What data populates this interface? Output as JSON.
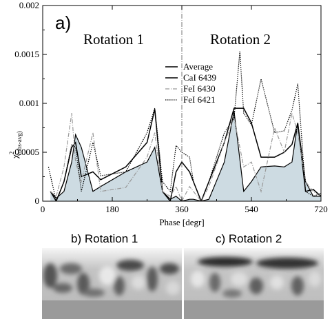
{
  "chart_data": [
    {
      "type": "area",
      "panel_label": "a)",
      "xlabel": "Phase [degr]",
      "ylabel_main": "χ",
      "ylabel_sup": "2",
      "ylabel_sub": "(obs-avg)",
      "xlim": [
        0,
        720
      ],
      "ylim": [
        0,
        0.002
      ],
      "xticks": [
        0,
        180,
        360,
        540,
        720
      ],
      "yticks": [
        0,
        0.0005,
        0.001,
        0.0015,
        0.002
      ],
      "ytick_labels": [
        "0",
        "0.0005",
        "0.001",
        "0.0015",
        "0.002"
      ],
      "divider_x": 360,
      "annotations": [
        "Rotation 1",
        "Rotation 2"
      ],
      "legend_position": "center",
      "series": [
        {
          "name": "Average",
          "style": "filled-area",
          "color": "#000000",
          "fill": "#cddbe2",
          "x": [
            20,
            35,
            55,
            75,
            85,
            100,
            130,
            150,
            215,
            270,
            290,
            310,
            330,
            345,
            360,
            380,
            390,
            410,
            430,
            470,
            495,
            520,
            540,
            565,
            600,
            625,
            645,
            660,
            680,
            700,
            720
          ],
          "y": [
            0.0001,
            3e-05,
            0.0001,
            0.0004,
            0.00068,
            0.00055,
            0.0001,
            0.00015,
            0.0003,
            0.0004,
            0.00055,
            0.0001,
            2e-05,
            5e-05,
            0.0,
            2e-05,
            2e-05,
            0.0,
            2e-05,
            0.0004,
            0.00092,
            0.0001,
            0.0002,
            0.00035,
            0.00036,
            0.00035,
            0.0004,
            0.0008,
            0.0002,
            5e-05,
            5e-05
          ]
        },
        {
          "name": "CaI 6439",
          "style": "solid",
          "color": "#000000",
          "x": [
            20,
            35,
            55,
            75,
            85,
            100,
            130,
            150,
            215,
            270,
            290,
            310,
            330,
            345,
            360,
            380,
            390,
            410,
            430,
            470,
            495,
            520,
            540,
            565,
            600,
            625,
            645,
            660,
            680,
            700,
            720
          ],
          "y": [
            0.0001,
            0.0,
            0.0002,
            0.00055,
            0.0006,
            0.00025,
            0.0003,
            0.00022,
            0.00035,
            0.0006,
            0.00094,
            0.0001,
            0.0,
            0.0003,
            0.0004,
            0.0003,
            0.0002,
            0.0,
            0.0002,
            0.0006,
            0.00095,
            0.00095,
            0.0008,
            0.00045,
            0.00045,
            0.0005,
            0.00058,
            0.0008,
            0.0001,
            0.00012,
            5e-05
          ]
        },
        {
          "name": "FeI 6430",
          "style": "dash-dot",
          "color": "#999999",
          "x": [
            20,
            35,
            55,
            75,
            85,
            100,
            130,
            150,
            215,
            270,
            290,
            310,
            330,
            345,
            360,
            380,
            390,
            410,
            430,
            470,
            495,
            520,
            540,
            565,
            600,
            625,
            645,
            660,
            680,
            700,
            720
          ],
          "y": [
            0.0001,
            5e-05,
            0.00035,
            0.0009,
            0.0004,
            0.0002,
            0.0007,
            0.0001,
            0.00014,
            0.00045,
            0.0007,
            0.0001,
            5e-05,
            0.00015,
            0.0,
            0.00015,
            0.0001,
            0.0,
            0.00015,
            0.0006,
            0.00085,
            0.00035,
            0.0004,
            0.0001,
            0.00075,
            0.0005,
            0.0009,
            0.0007,
            0.0002,
            0.0001,
            5e-05
          ]
        },
        {
          "name": "FeI 6421",
          "style": "dotted",
          "color": "#000000",
          "x": [
            15,
            35,
            55,
            75,
            85,
            100,
            130,
            150,
            215,
            270,
            290,
            310,
            330,
            345,
            360,
            380,
            390,
            410,
            430,
            470,
            495,
            510,
            520,
            540,
            565,
            600,
            625,
            645,
            660,
            680,
            700,
            720
          ],
          "y": [
            0.00035,
            0.0,
            0.0002,
            0.00058,
            0.00055,
            0.0001,
            0.0006,
            0.00026,
            0.0003,
            0.0007,
            0.00095,
            0.0002,
            0.0001,
            0.00057,
            0.0005,
            0.00045,
            0.0002,
            0.0,
            0.0002,
            0.0007,
            0.00085,
            0.00153,
            0.0009,
            0.00078,
            0.00125,
            0.0007,
            0.00072,
            0.00093,
            0.0012,
            0.0001,
            5e-05,
            8e-05
          ]
        }
      ]
    }
  ],
  "images": [
    {
      "title": "b) Rotation 1"
    },
    {
      "title": "c) Rotation 2"
    }
  ]
}
